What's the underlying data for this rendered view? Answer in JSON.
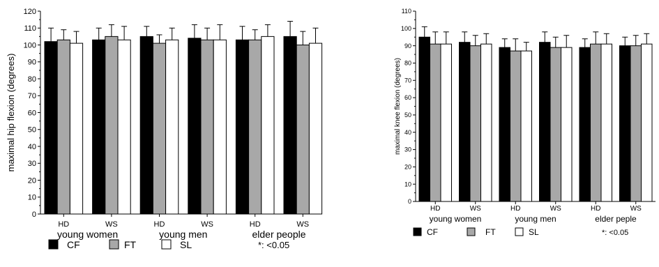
{
  "colors": {
    "CF": "#000000",
    "FT": "#a8a8a8",
    "SL": "#ffffff",
    "axis": "#000000"
  },
  "chart_data": [
    {
      "type": "bar",
      "ylabel": "maximal hip flexion (degrees)",
      "ylim": [
        0,
        120
      ],
      "yticks": [
        0,
        10,
        20,
        30,
        40,
        50,
        60,
        70,
        80,
        90,
        100,
        110,
        120
      ],
      "categories": [
        "HD",
        "WS",
        "HD",
        "WS",
        "HD",
        "WS"
      ],
      "groups": [
        "young women",
        "young men",
        "elder people"
      ],
      "series": [
        {
          "name": "CF",
          "values": [
            102,
            103,
            105,
            104,
            103,
            105
          ],
          "errors": [
            8,
            7,
            6,
            8,
            8,
            9
          ]
        },
        {
          "name": "FT",
          "values": [
            103,
            105,
            101,
            103,
            103,
            100
          ],
          "errors": [
            6,
            7,
            5,
            7,
            6,
            8
          ]
        },
        {
          "name": "SL",
          "values": [
            101,
            103,
            103,
            103,
            105,
            101
          ],
          "errors": [
            7,
            8,
            7,
            9,
            7,
            9
          ]
        }
      ],
      "legend": [
        "CF",
        "FT",
        "SL"
      ],
      "note": "*: <0.05"
    },
    {
      "type": "bar",
      "ylabel": "maximal knee flexion (degrees)",
      "ylim": [
        0,
        110
      ],
      "yticks": [
        0,
        10,
        20,
        30,
        40,
        50,
        60,
        70,
        80,
        90,
        100,
        110
      ],
      "categories": [
        "HD",
        "WS",
        "HD",
        "WS",
        "HD",
        "WS"
      ],
      "groups": [
        "young women",
        "young men",
        "elder peple"
      ],
      "series": [
        {
          "name": "CF",
          "values": [
            95,
            92,
            89,
            92,
            89,
            90
          ],
          "errors": [
            6,
            6,
            5,
            6,
            5,
            5
          ]
        },
        {
          "name": "FT",
          "values": [
            91,
            90,
            87,
            89,
            91,
            90
          ],
          "errors": [
            7,
            6,
            7,
            6,
            7,
            6
          ]
        },
        {
          "name": "SL",
          "values": [
            91,
            91,
            87,
            89,
            91,
            91
          ],
          "errors": [
            7,
            6,
            5,
            7,
            6,
            6
          ]
        }
      ],
      "legend": [
        "CF",
        "FT",
        "SL"
      ],
      "note": "*: <0.05"
    }
  ]
}
